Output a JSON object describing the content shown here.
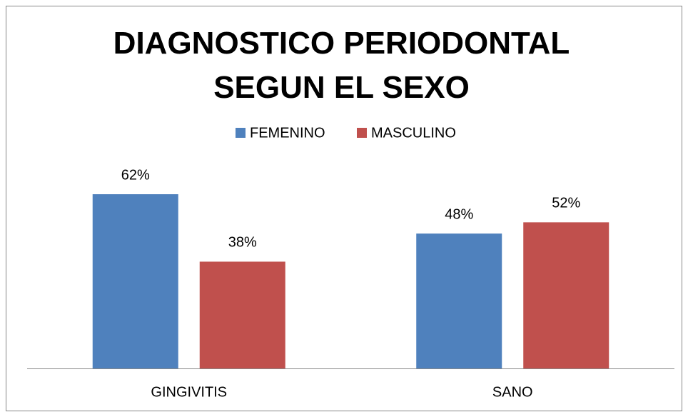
{
  "chart_data": {
    "type": "bar",
    "title": "DIAGNOSTICO PERIODONTAL SEGUN EL SEXO",
    "categories": [
      "GINGIVITIS",
      "SANO"
    ],
    "series": [
      {
        "name": "FEMENINO",
        "color": "#4f81bd",
        "values": [
          62,
          48
        ],
        "value_labels": [
          "62%",
          "48%"
        ]
      },
      {
        "name": "MASCULINO",
        "color": "#c0504d",
        "values": [
          38,
          52
        ],
        "value_labels": [
          "38%",
          "52%"
        ]
      }
    ]
  }
}
